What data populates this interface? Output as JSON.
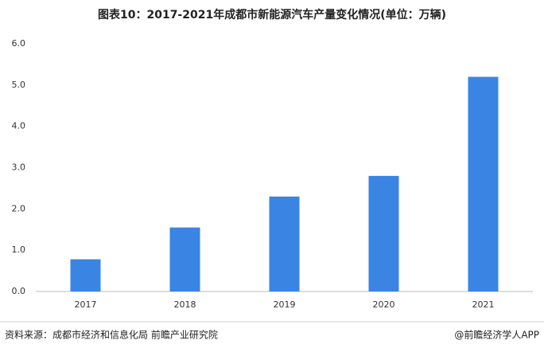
{
  "chart_data": {
    "type": "bar",
    "title": "图表10：2017-2021年成都市新能源汽车产量变化情况(单位：万辆)",
    "categories": [
      "2017",
      "2018",
      "2019",
      "2020",
      "2021"
    ],
    "values": [
      0.78,
      1.55,
      2.3,
      2.8,
      5.2
    ],
    "color": "#3a84e4",
    "ylim": [
      0,
      6
    ],
    "yticks": [
      {
        "value": 0,
        "label": "0.0"
      },
      {
        "value": 1,
        "label": "1.0"
      },
      {
        "value": 2,
        "label": "2.0"
      },
      {
        "value": 3,
        "label": "3.0"
      },
      {
        "value": 4,
        "label": "4.0"
      },
      {
        "value": 5,
        "label": "5.0"
      },
      {
        "value": 6,
        "label": "6.0"
      }
    ],
    "grid": false
  },
  "footer": {
    "source": "资料来源：成都市经济和信息化局 前瞻产业研究院",
    "brand": "@前瞻经济学人APP"
  }
}
